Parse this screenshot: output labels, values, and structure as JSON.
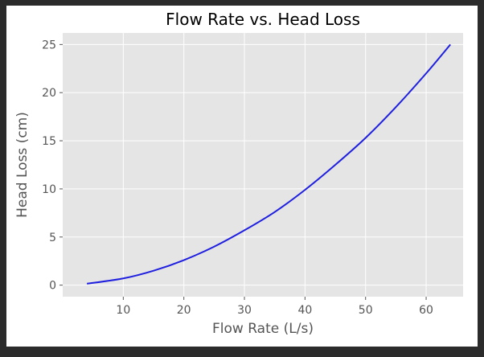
{
  "chart_data": {
    "type": "line",
    "title": "Flow Rate vs. Head Loss",
    "xlabel": "Flow Rate (L/s)",
    "ylabel": "Head Loss (cm)",
    "xlim": [
      0,
      66.1
    ],
    "ylim": [
      -1.2,
      26.2
    ],
    "xticks": [
      10,
      20,
      30,
      40,
      50,
      60
    ],
    "yticks": [
      0,
      5,
      10,
      15,
      20,
      25
    ],
    "grid": true,
    "background": "#e5e5e5",
    "grid_color": "#ffffff",
    "series": [
      {
        "color": "#1f1fe0",
        "x": [
          4,
          10,
          15,
          20,
          25,
          30,
          35,
          40,
          45,
          50,
          55,
          60,
          64
        ],
        "y": [
          0.15,
          0.7,
          1.5,
          2.6,
          4.0,
          5.7,
          7.6,
          9.9,
          12.5,
          15.3,
          18.5,
          22.0,
          25.0
        ]
      }
    ]
  }
}
